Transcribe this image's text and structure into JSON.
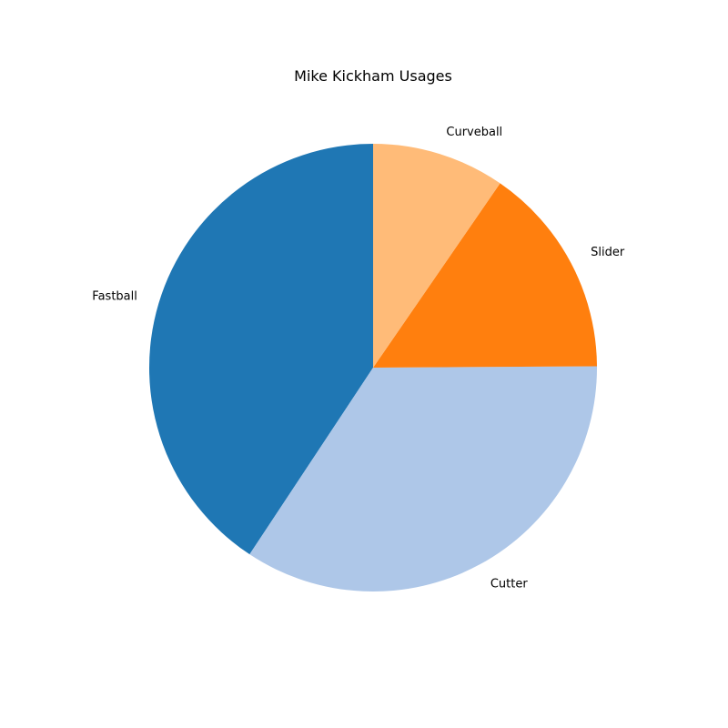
{
  "chart_data": {
    "type": "pie",
    "title": "Mike Kickham Usages",
    "slices": [
      {
        "label": "Fastball",
        "value": 40.7,
        "color": "#1f77b4"
      },
      {
        "label": "Cutter",
        "value": 34.4,
        "color": "#aec7e8"
      },
      {
        "label": "Slider",
        "value": 15.3,
        "color": "#ff7f0e"
      },
      {
        "label": "Curveball",
        "value": 9.6,
        "color": "#ffbb78"
      }
    ],
    "start_angle_deg": 90,
    "direction": "counterclockwise",
    "legend": "none"
  }
}
